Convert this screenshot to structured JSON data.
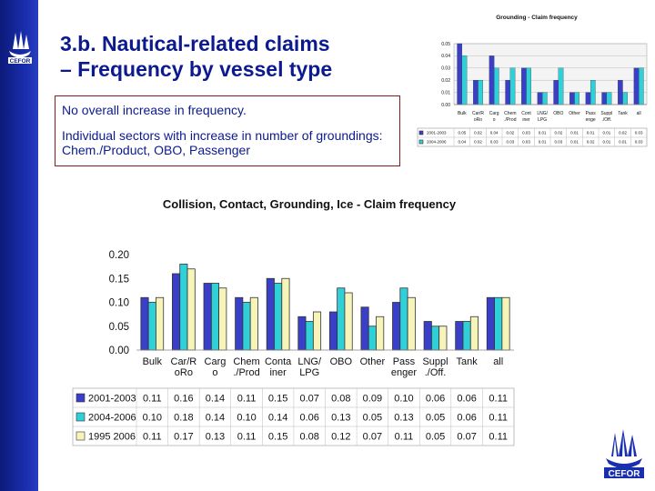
{
  "slide": {
    "title_line1": "3.b. Nautical-related claims",
    "title_line2": "– Frequency by vessel type",
    "note1": "No overall increase in frequency.",
    "note2": "Individual sectors with increase in number of groundings: Chem./Product, OBO, Passenger"
  },
  "colors": {
    "brand_blue": "#0b1a8f",
    "sidebar": "#1a2fb0",
    "series_2001_2003": "#3a3fc8",
    "series_2004_2006": "#2fd0d8",
    "series_1995_2006": "#f6f4b8"
  },
  "chart_data": [
    {
      "type": "bar",
      "title": "Collision, Contact, Grounding, Ice - Claim frequency",
      "categories": [
        "Bulk",
        "Car/R\noRo",
        "Carg\no",
        "Chem\n./Prod",
        "Conta\niner",
        "LNG/\nLPG",
        "OBO",
        "Other",
        "Pass\nenger",
        "Suppl\n./Off.",
        "Tank",
        "all"
      ],
      "series": [
        {
          "name": "2001-2003",
          "values": [
            0.11,
            0.16,
            0.14,
            0.11,
            0.15,
            0.07,
            0.08,
            0.09,
            0.1,
            0.06,
            0.06,
            0.11
          ]
        },
        {
          "name": "2004-2006",
          "values": [
            0.1,
            0.18,
            0.14,
            0.1,
            0.14,
            0.06,
            0.13,
            0.05,
            0.13,
            0.05,
            0.06,
            0.11
          ]
        },
        {
          "name": "1995 2006",
          "values": [
            0.11,
            0.17,
            0.13,
            0.11,
            0.15,
            0.08,
            0.12,
            0.07,
            0.11,
            0.05,
            0.07,
            0.11
          ]
        }
      ],
      "yticks": [
        "0.00",
        "0.05",
        "0.10",
        "0.15",
        "0.20"
      ],
      "ylim": [
        0,
        0.2
      ],
      "grid": false,
      "legend": "data table below chart"
    },
    {
      "type": "bar",
      "title": "Grounding - Claim frequency",
      "categories": [
        "Bulk",
        "Car/R\noRo",
        "Carg\no",
        "Chem\n./Prod",
        "Cont\niner",
        "LNG/\nLPG",
        "OBO",
        "Other",
        "Pass\nenge",
        "Suppl\n./Off.",
        "Tank",
        "all"
      ],
      "series": [
        {
          "name": "2001-2003",
          "values": [
            0.05,
            0.02,
            0.04,
            0.02,
            0.03,
            0.01,
            0.02,
            0.01,
            0.01,
            0.01,
            0.02,
            0.03
          ]
        },
        {
          "name": "2004-2006",
          "values": [
            0.04,
            0.02,
            0.03,
            0.03,
            0.03,
            0.01,
            0.03,
            0.01,
            0.02,
            0.01,
            0.01,
            0.03
          ]
        }
      ],
      "yticks": [
        "0.00",
        "0.01",
        "0.02",
        "0.03",
        "0.04",
        "0.05"
      ],
      "ylim": [
        0,
        0.05
      ],
      "grid": true,
      "legend": "data table below chart"
    }
  ]
}
